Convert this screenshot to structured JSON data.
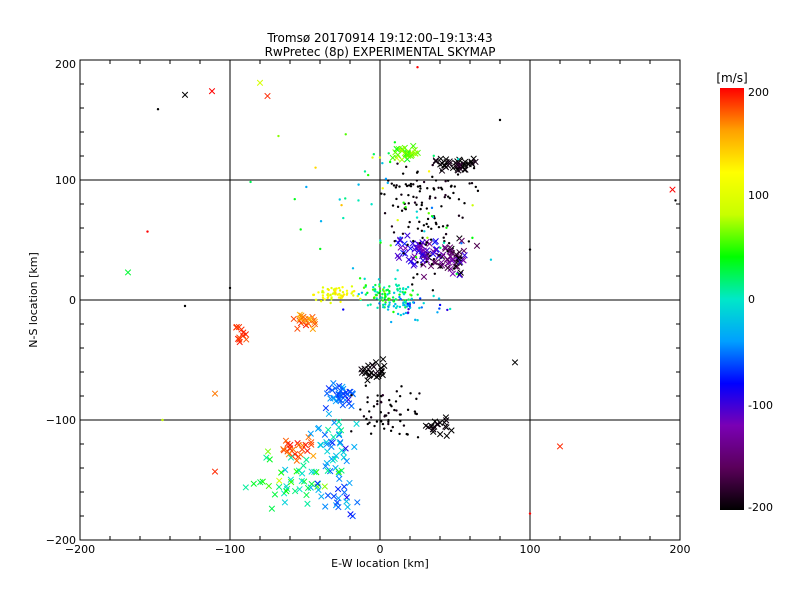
{
  "title_line1": "Tromsø 20170914 19:12:00–19:13:43",
  "title_line2": "RwPretec (8p) EXPERIMENTAL SKYMAP",
  "colorbar": {
    "unit": "[m/s]",
    "min": -200,
    "max": 200,
    "ticks": [
      "200",
      "100",
      "0",
      "-100",
      "-200"
    ],
    "colormap": [
      "#000000",
      "#5a005a",
      "#7a00b4",
      "#0000ff",
      "#00a0ff",
      "#00e8c8",
      "#00ff00",
      "#c8ff00",
      "#ffff00",
      "#ffa000",
      "#ff0000"
    ]
  },
  "chart_data": {
    "type": "scatter",
    "title": "Tromsø 20170914 19:12:00–19:13:43",
    "subtitle": "RwPretec (8p) EXPERIMENTAL SKYMAP",
    "xlabel": "E-W location [km]",
    "ylabel": "N-S location [km]",
    "xlim": [
      -200,
      200
    ],
    "ylim": [
      -200,
      200
    ],
    "xticks": [
      "−200",
      "−100",
      "0",
      "100",
      "200"
    ],
    "yticks": [
      "−200",
      "−100",
      "0",
      "100",
      "200"
    ],
    "grid": true,
    "grid_values": [
      -100,
      0,
      100
    ],
    "color_variable": "velocity [m/s]",
    "clusters": [
      {
        "x": 18,
        "y": 122,
        "sx": 6,
        "sy": 5,
        "v": 60,
        "n": 30,
        "sv": 25,
        "mark": "x"
      },
      {
        "x": 50,
        "y": 112,
        "sx": 10,
        "sy": 5,
        "v": -200,
        "n": 40,
        "sv": 15,
        "mark": "x"
      },
      {
        "x": 30,
        "y": 95,
        "sx": 25,
        "sy": 15,
        "v": -200,
        "n": 70,
        "sv": 10,
        "mark": "."
      },
      {
        "x": 45,
        "y": 35,
        "sx": 12,
        "sy": 10,
        "v": -150,
        "n": 60,
        "sv": 40,
        "mark": "x"
      },
      {
        "x": 25,
        "y": 40,
        "sx": 10,
        "sy": 10,
        "v": -100,
        "n": 40,
        "sv": 20,
        "mark": "x"
      },
      {
        "x": 35,
        "y": 50,
        "sx": 20,
        "sy": 25,
        "v": -200,
        "n": 60,
        "sv": 10,
        "mark": "."
      },
      {
        "x": 5,
        "y": 5,
        "sx": 15,
        "sy": 8,
        "v": 20,
        "n": 90,
        "sv": 35,
        "mark": "."
      },
      {
        "x": -30,
        "y": 5,
        "sx": 10,
        "sy": 5,
        "v": 110,
        "n": 60,
        "sv": 20,
        "mark": "."
      },
      {
        "x": 20,
        "y": -5,
        "sx": 15,
        "sy": 8,
        "v": -40,
        "n": 50,
        "sv": 40,
        "mark": "."
      },
      {
        "x": -50,
        "y": -18,
        "sx": 6,
        "sy": 5,
        "v": 170,
        "n": 20,
        "sv": 20,
        "mark": "x"
      },
      {
        "x": -93,
        "y": -28,
        "sx": 4,
        "sy": 5,
        "v": 190,
        "n": 12,
        "sv": 10,
        "mark": "x"
      },
      {
        "x": -5,
        "y": -58,
        "sx": 6,
        "sy": 5,
        "v": -200,
        "n": 25,
        "sv": 10,
        "mark": "x"
      },
      {
        "x": -25,
        "y": -80,
        "sx": 8,
        "sy": 8,
        "v": -60,
        "n": 35,
        "sv": 20,
        "mark": "x"
      },
      {
        "x": 5,
        "y": -95,
        "sx": 15,
        "sy": 15,
        "v": -200,
        "n": 60,
        "sv": 10,
        "mark": "."
      },
      {
        "x": 40,
        "y": -105,
        "sx": 7,
        "sy": 5,
        "v": -200,
        "n": 20,
        "sv": 10,
        "mark": "x"
      },
      {
        "x": -55,
        "y": -125,
        "sx": 8,
        "sy": 7,
        "v": 180,
        "n": 25,
        "sv": 15,
        "mark": "x"
      },
      {
        "x": -30,
        "y": -120,
        "sx": 10,
        "sy": 15,
        "v": -20,
        "n": 40,
        "sv": 40,
        "mark": "x"
      },
      {
        "x": -60,
        "y": -150,
        "sx": 20,
        "sy": 15,
        "v": 30,
        "n": 45,
        "sv": 40,
        "mark": "x"
      },
      {
        "x": -25,
        "y": -165,
        "sx": 10,
        "sy": 10,
        "v": -50,
        "n": 20,
        "sv": 30,
        "mark": "x"
      },
      {
        "x": 0,
        "y": 70,
        "sx": 50,
        "sy": 50,
        "v": 30,
        "n": 60,
        "sv": 70,
        "mark": "."
      }
    ],
    "points": [
      {
        "x": -130,
        "y": 171,
        "v": -200,
        "mark": "x"
      },
      {
        "x": -112,
        "y": 174,
        "v": 200,
        "mark": "x"
      },
      {
        "x": -80,
        "y": 181,
        "v": 90,
        "mark": "x"
      },
      {
        "x": -75,
        "y": 170,
        "v": 190,
        "mark": "x"
      },
      {
        "x": -168,
        "y": 23,
        "v": 30,
        "mark": "x"
      },
      {
        "x": 195,
        "y": 92,
        "v": 200,
        "mark": "x"
      },
      {
        "x": 197,
        "y": 83,
        "v": -200,
        "mark": "."
      },
      {
        "x": 120,
        "y": -122,
        "v": 190,
        "mark": "x"
      },
      {
        "x": -110,
        "y": -143,
        "v": 190,
        "mark": "x"
      },
      {
        "x": -110,
        "y": -78,
        "v": 170,
        "mark": "x"
      },
      {
        "x": 90,
        "y": -52,
        "v": -200,
        "mark": "x"
      },
      {
        "x": -148,
        "y": 159,
        "v": -200,
        "mark": "."
      },
      {
        "x": -155,
        "y": 57,
        "v": 200,
        "mark": "."
      },
      {
        "x": 25,
        "y": 194,
        "v": 200,
        "mark": "."
      },
      {
        "x": 100,
        "y": 42,
        "v": -200,
        "mark": "."
      },
      {
        "x": -130,
        "y": -5,
        "v": -200,
        "mark": "."
      },
      {
        "x": -100,
        "y": 10,
        "v": -200,
        "mark": "."
      },
      {
        "x": -145,
        "y": -100,
        "v": 80,
        "mark": "."
      },
      {
        "x": 100,
        "y": -178,
        "v": 200,
        "mark": "."
      },
      {
        "x": 80,
        "y": 150,
        "v": -200,
        "mark": "."
      }
    ]
  }
}
